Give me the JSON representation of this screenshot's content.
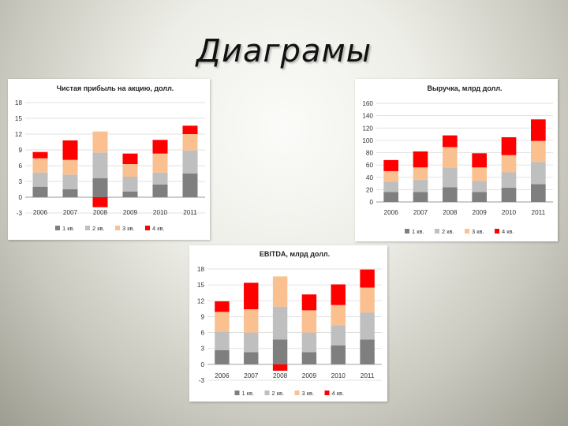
{
  "slide": {
    "title": "Диаграмы"
  },
  "colors": {
    "q1": "#7f7f7f",
    "q2": "#bfbfbf",
    "q3": "#fac090",
    "q4": "#ff0000"
  },
  "legend_labels": [
    "1 кв.",
    "2 кв.",
    "3 кв.",
    "4 кв."
  ],
  "chart_data": [
    {
      "id": "eps",
      "type": "bar",
      "stacked": true,
      "title": "Чистая прибыль на акцию, долл.",
      "categories": [
        "2006",
        "2007",
        "2008",
        "2009",
        "2010",
        "2011"
      ],
      "yticks": [
        "-3",
        "0",
        "3",
        "6",
        "9",
        "12",
        "15",
        "18"
      ],
      "ylim": [
        -3,
        18
      ],
      "grid": true,
      "legend": "bottom",
      "series": [
        {
          "name": "1 кв.",
          "values": [
            2.0,
            1.5,
            3.6,
            1.1,
            2.4,
            4.5
          ]
        },
        {
          "name": "2 кв.",
          "values": [
            2.7,
            2.8,
            4.9,
            2.8,
            2.3,
            4.4
          ]
        },
        {
          "name": "3 кв.",
          "values": [
            2.7,
            2.8,
            4.0,
            2.4,
            3.6,
            3.1
          ]
        },
        {
          "name": "4 кв.",
          "values": [
            1.2,
            3.7,
            -1.9,
            2.0,
            2.6,
            1.6
          ]
        }
      ]
    },
    {
      "id": "revenue",
      "type": "bar",
      "stacked": true,
      "title": "Выручка, млрд долл.",
      "categories": [
        "2006",
        "2007",
        "2008",
        "2009",
        "2010",
        "2011"
      ],
      "yticks": [
        "0",
        "20",
        "40",
        "60",
        "80",
        "100",
        "120",
        "140",
        "160"
      ],
      "ylim": [
        0,
        160
      ],
      "grid": true,
      "legend": "bottom",
      "series": [
        {
          "name": "1 кв.",
          "values": [
            16,
            16,
            24,
            16,
            23,
            29
          ]
        },
        {
          "name": "2 кв.",
          "values": [
            17,
            20,
            32,
            18,
            25,
            36
          ]
        },
        {
          "name": "3 кв.",
          "values": [
            17,
            20,
            33,
            22,
            28,
            34
          ]
        },
        {
          "name": "4 кв.",
          "values": [
            18,
            26,
            19,
            23,
            29,
            35
          ]
        }
      ]
    },
    {
      "id": "ebitda",
      "type": "bar",
      "stacked": true,
      "title": "EBITDA, млрд долл.",
      "categories": [
        "2006",
        "2007",
        "2008",
        "2009",
        "2010",
        "2011"
      ],
      "yticks": [
        "-3",
        "0",
        "3",
        "6",
        "9",
        "12",
        "15",
        "18"
      ],
      "ylim": [
        -3,
        18
      ],
      "grid": true,
      "legend": "bottom",
      "series": [
        {
          "name": "1 кв.",
          "values": [
            2.7,
            2.3,
            4.7,
            2.3,
            3.6,
            4.7
          ]
        },
        {
          "name": "2 кв.",
          "values": [
            3.5,
            3.7,
            6.2,
            3.7,
            3.8,
            5.1
          ]
        },
        {
          "name": "3 кв.",
          "values": [
            3.7,
            4.4,
            5.7,
            4.2,
            3.8,
            4.7
          ]
        },
        {
          "name": "4 кв.",
          "values": [
            2.0,
            5.0,
            -1.2,
            3.0,
            3.9,
            3.4
          ]
        }
      ]
    }
  ]
}
